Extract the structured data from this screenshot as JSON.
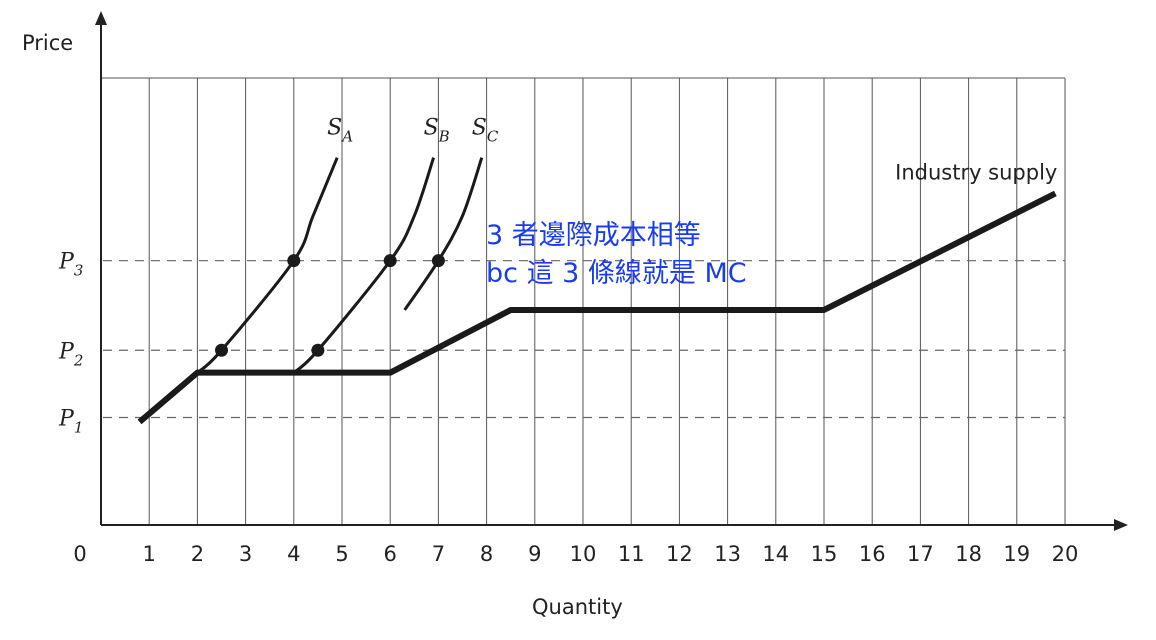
{
  "chart_data": {
    "type": "line",
    "xlabel": "Quantity",
    "ylabel": "Price",
    "x_ticks": [
      "0",
      "1",
      "2",
      "3",
      "4",
      "5",
      "6",
      "7",
      "8",
      "9",
      "10",
      "11",
      "12",
      "13",
      "14",
      "15",
      "16",
      "17",
      "18",
      "19",
      "20"
    ],
    "xlim": [
      0,
      20
    ],
    "ylim": [
      0,
      10
    ],
    "price_levels": [
      {
        "name": "P",
        "sub": "1",
        "y": 2.4
      },
      {
        "name": "P",
        "sub": "3",
        "y": 5.9
      },
      {
        "name": "P",
        "sub": "2",
        "y": 3.9
      }
    ],
    "series": [
      {
        "name": "S",
        "sub": "A",
        "points": [
          [
            2,
            3.4
          ],
          [
            2.5,
            3.9
          ],
          [
            4,
            5.9
          ],
          [
            4.4,
            6.9
          ],
          [
            4.9,
            8.2
          ]
        ]
      },
      {
        "name": "S",
        "sub": "B",
        "points": [
          [
            4,
            3.4
          ],
          [
            4.5,
            3.9
          ],
          [
            6,
            5.9
          ],
          [
            6.5,
            6.9
          ],
          [
            6.9,
            8.2
          ]
        ]
      },
      {
        "name": "S",
        "sub": "C",
        "points": [
          [
            6.3,
            4.8
          ],
          [
            7,
            5.9
          ],
          [
            7.5,
            6.9
          ],
          [
            7.9,
            8.2
          ]
        ]
      },
      {
        "name": "Industry supply",
        "points": [
          [
            0.8,
            2.3
          ],
          [
            2,
            3.4
          ],
          [
            6,
            3.4
          ],
          [
            8.5,
            4.8
          ],
          [
            15,
            4.8
          ],
          [
            19.8,
            7.4
          ]
        ]
      }
    ],
    "markers": [
      [
        2.5,
        3.9
      ],
      [
        4,
        5.9
      ],
      [
        4.5,
        3.9
      ],
      [
        6,
        5.9
      ],
      [
        7,
        5.9
      ]
    ],
    "annotations": [
      "3 者邊際成本相等",
      "bc 這 3 條線就是 MC"
    ]
  }
}
